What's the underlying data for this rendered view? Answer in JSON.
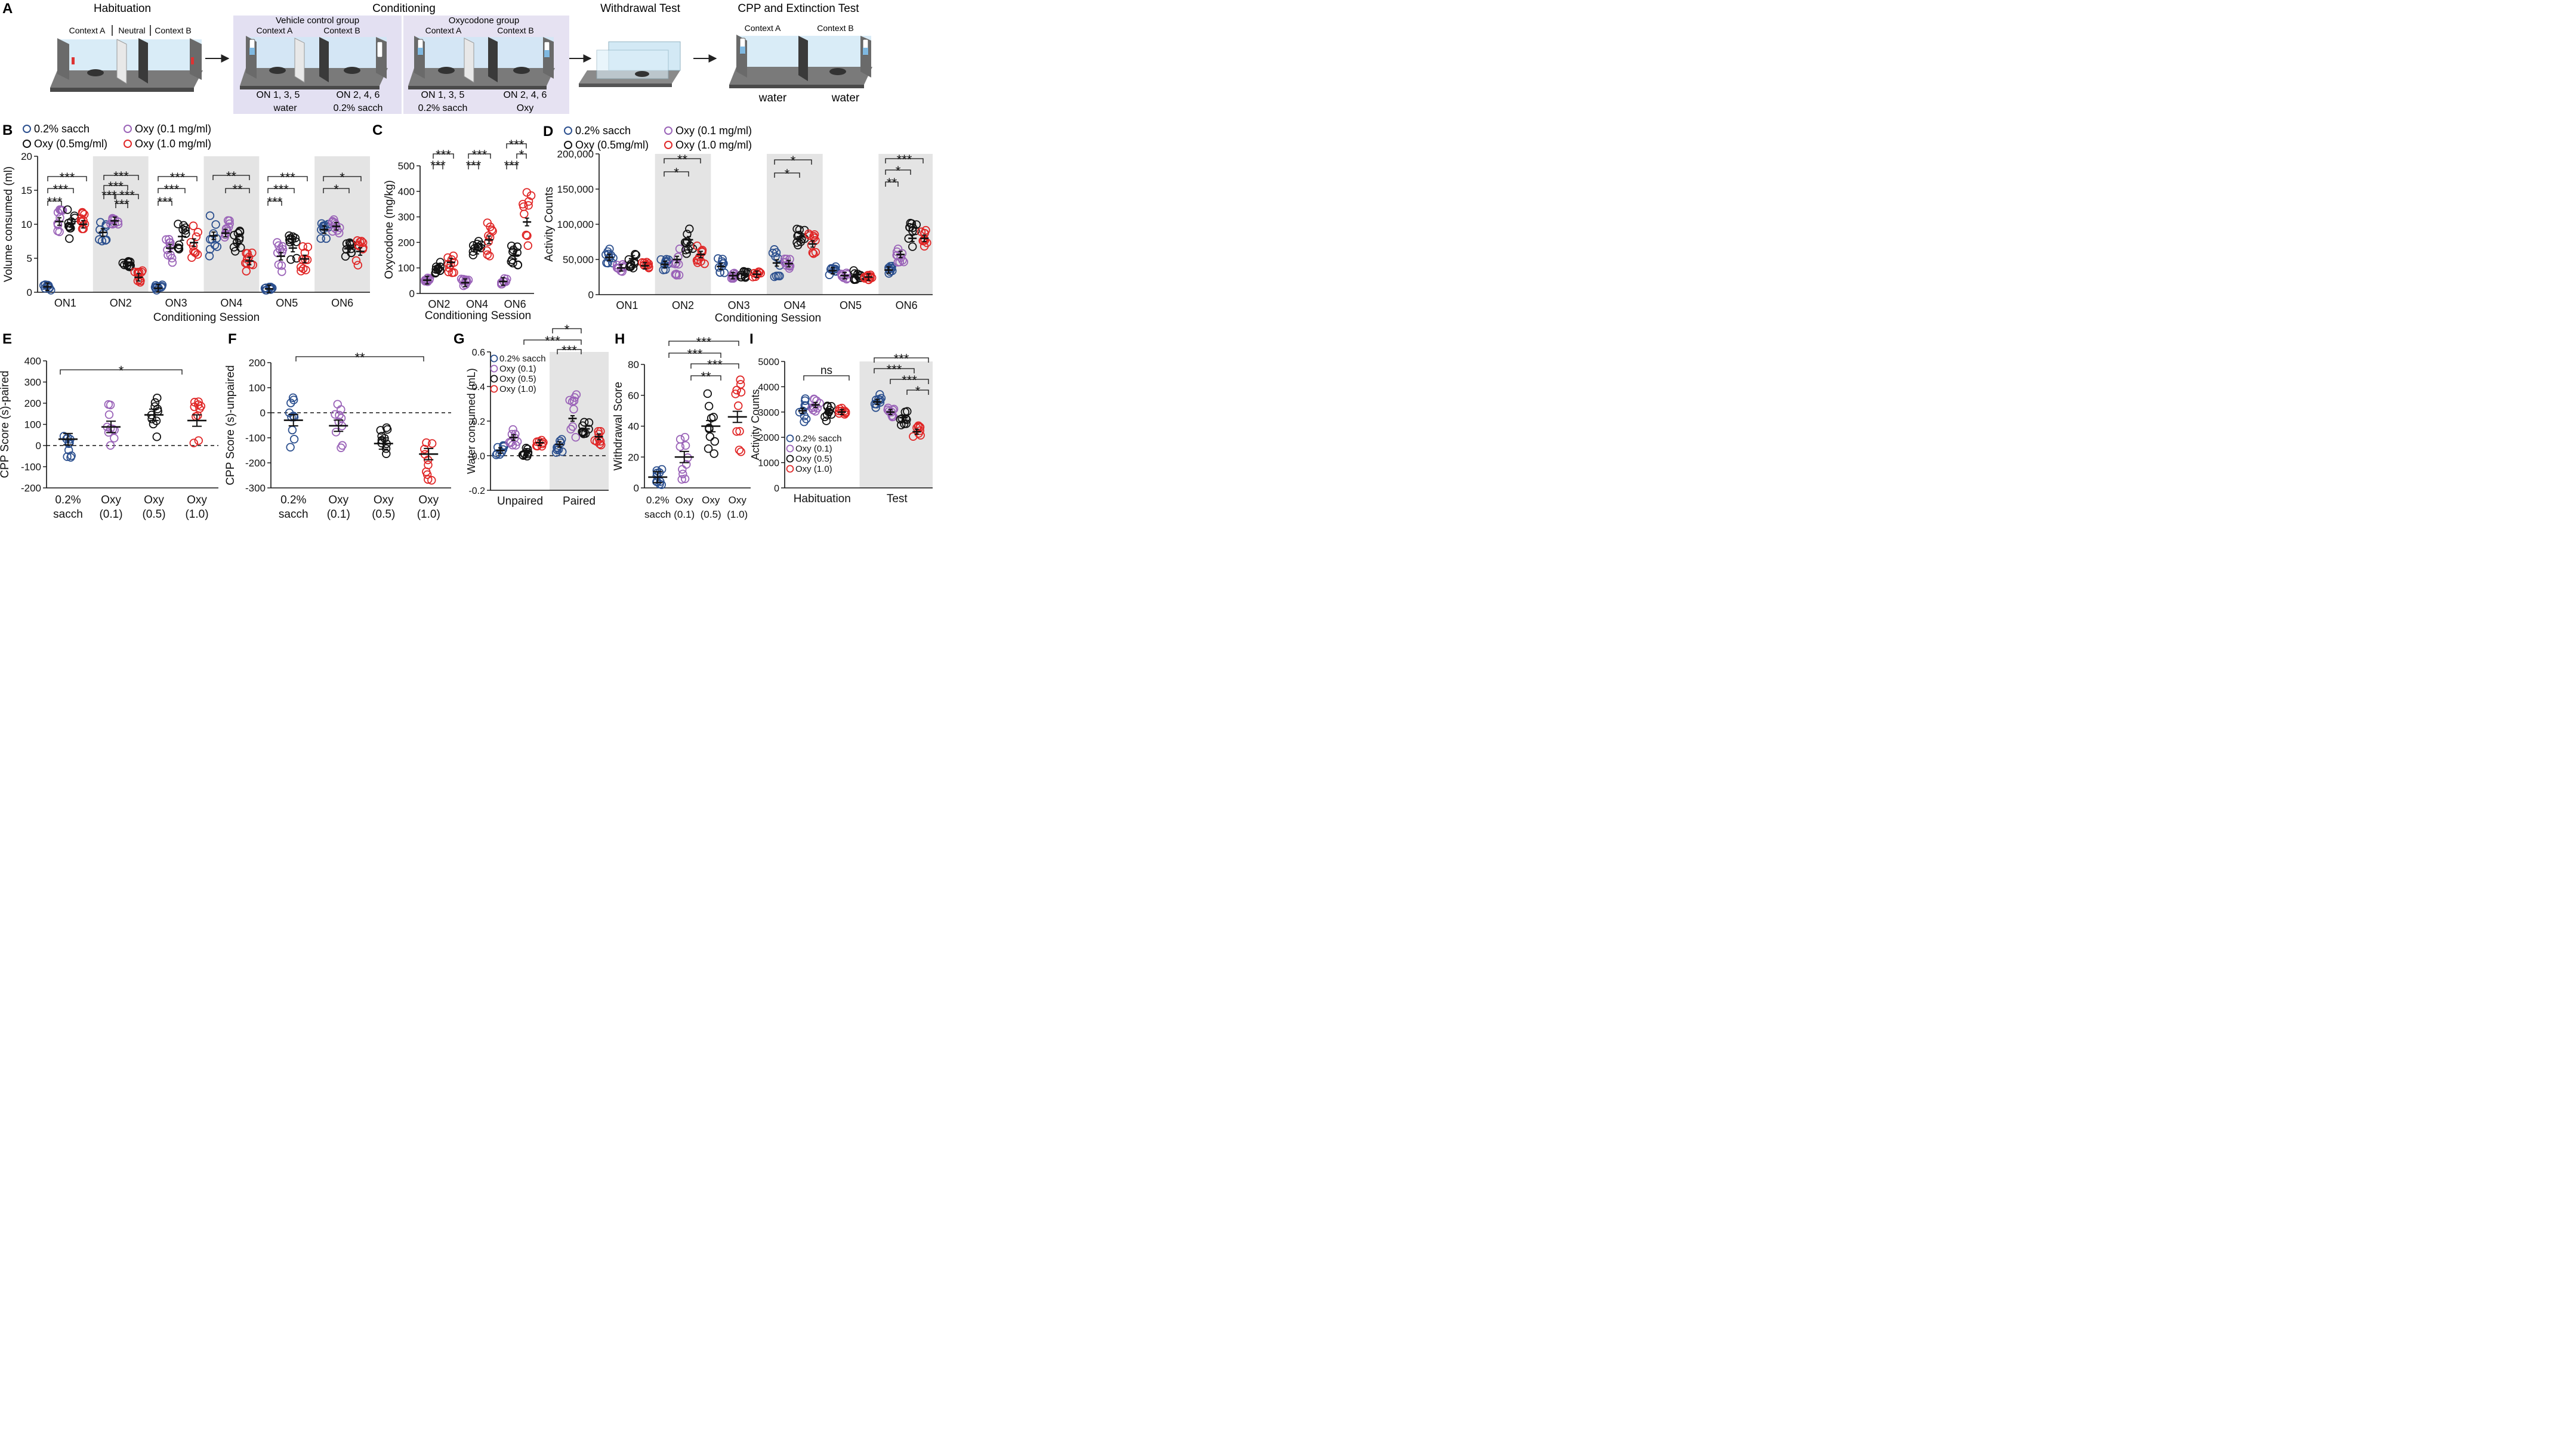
{
  "colors": {
    "sacch": "#2b4f8e",
    "oxy01": "#9a63b8",
    "oxy05": "#111111",
    "oxy10": "#e02626",
    "shade": "#e4e4e4",
    "condShade": "#e3e0f2"
  },
  "panelA": {
    "letter": "A",
    "habituation": {
      "title": "Habituation",
      "labels": [
        "Context A",
        "Neutral",
        "Context B"
      ]
    },
    "conditioning": {
      "title": "Conditioning",
      "vehicle": {
        "title": "Vehicle control group",
        "ctxA": "Context A",
        "ctxB": "Context B",
        "onA": "ON 1, 3, 5",
        "onB": "ON 2, 4, 6",
        "solA": "water",
        "solB": "0.2% sacch"
      },
      "oxy": {
        "title": "Oxycodone group",
        "ctxA": "Context A",
        "ctxB": "Context B",
        "onA": "ON 1, 3, 5",
        "onB": "ON 2, 4, 6",
        "solA": "0.2% sacch",
        "solB": "Oxy"
      }
    },
    "withdrawal": {
      "title": "Withdrawal Test"
    },
    "cpp": {
      "title": "CPP and Extinction Test",
      "ctxA": "Context A",
      "ctxB": "Context B",
      "solA": "water",
      "solB": "water"
    }
  },
  "legendTop": {
    "sacch": "0.2% sacch",
    "oxy01": "Oxy (0.1 mg/ml)",
    "oxy05": "Oxy (0.5mg/ml)",
    "oxy10": "Oxy (1.0 mg/ml)"
  },
  "legendSmall": {
    "sacch": "0.2% sacch",
    "oxy01": "Oxy (0.1)",
    "oxy05": "Oxy (0.5)",
    "oxy10": "Oxy (1.0)"
  },
  "chart_data": [
    {
      "panel": "B",
      "type": "scatter",
      "ylabel": "Volume consumed (ml)",
      "xlabel": "Conditioning Session",
      "ylim": [
        0,
        20
      ],
      "yticks": [
        "0",
        "5",
        "10",
        "15",
        "20"
      ],
      "categories": [
        "ON1",
        "ON2",
        "ON3",
        "ON4",
        "ON5",
        "ON6"
      ],
      "shaded": [
        "ON2",
        "ON4",
        "ON6"
      ],
      "series": [
        {
          "name": "0.2% sacch",
          "means": [
            0.8,
            8.8,
            0.6,
            8.3,
            0.5,
            9.2
          ]
        },
        {
          "name": "Oxy (0.1 mg/ml)",
          "means": [
            10.4,
            10.5,
            6.5,
            8.7,
            5.3,
            9.7
          ]
        },
        {
          "name": "Oxy (0.5mg/ml)",
          "means": [
            10.1,
            4.3,
            8.2,
            7.2,
            6.5,
            6.4
          ]
        },
        {
          "name": "Oxy (1.0 mg/ml)",
          "means": [
            10.0,
            2.2,
            7.3,
            4.6,
            4.9,
            6.0
          ]
        }
      ],
      "annotations": [
        "***",
        "***",
        "***",
        "***",
        "***",
        "***",
        "***",
        "***",
        "***",
        "***",
        "***",
        "***",
        "***",
        "**",
        "**",
        "***",
        "***",
        "***",
        "*",
        "*"
      ]
    },
    {
      "panel": "C",
      "type": "scatter",
      "ylabel": "Oxycodone (mg/kg)",
      "xlabel": "Conditioning Session",
      "ylim": [
        0,
        500
      ],
      "yticks": [
        "0",
        "100",
        "200",
        "300",
        "400",
        "500"
      ],
      "categories": [
        "ON2",
        "ON4",
        "ON6"
      ],
      "series": [
        {
          "name": "Oxy (0.1 mg/ml)",
          "means": [
            52,
            42,
            47
          ]
        },
        {
          "name": "Oxy (0.5mg/ml)",
          "means": [
            100,
            170,
            150
          ]
        },
        {
          "name": "Oxy (1.0 mg/ml)",
          "means": [
            122,
            210,
            280
          ]
        }
      ],
      "annotations": [
        "***",
        "***",
        "***",
        "***",
        "***",
        "***",
        "***",
        "*",
        "***"
      ]
    },
    {
      "panel": "D",
      "type": "scatter",
      "ylabel": "Activity Counts",
      "xlabel": "Conditioning Session",
      "ylim": [
        0,
        200000
      ],
      "yticks": [
        "0",
        "50,000",
        "100,000",
        "150,000",
        "200,000"
      ],
      "categories": [
        "ON1",
        "ON2",
        "ON3",
        "ON4",
        "ON5",
        "ON6"
      ],
      "shaded": [
        "ON2",
        "ON4",
        "ON6"
      ],
      "series": [
        {
          "name": "0.2% sacch",
          "means": [
            53000,
            43000,
            40000,
            45000,
            34000,
            35000
          ]
        },
        {
          "name": "Oxy (0.1 mg/ml)",
          "means": [
            38000,
            50000,
            27000,
            44000,
            27000,
            57000
          ]
        },
        {
          "name": "Oxy (0.5mg/ml)",
          "means": [
            51000,
            78000,
            29000,
            82000,
            28000,
            80000
          ]
        },
        {
          "name": "Oxy (1.0 mg/ml)",
          "means": [
            41000,
            57000,
            29000,
            72000,
            25000,
            80000
          ]
        }
      ],
      "annotations": [
        "**",
        "*",
        "*",
        "*",
        "***",
        "*",
        "**"
      ]
    },
    {
      "panel": "E",
      "type": "scatter",
      "ylabel": "CPP Score (s)-paired",
      "ylim": [
        -200,
        400
      ],
      "yticks": [
        "-200",
        "-100",
        "0",
        "100",
        "200",
        "300",
        "400"
      ],
      "categories": [
        [
          "0.2%",
          "sacch"
        ],
        [
          "Oxy",
          "(0.1)"
        ],
        [
          "Oxy",
          "(0.5)"
        ],
        [
          "Oxy",
          "(1.0)"
        ]
      ],
      "means": [
        30,
        88,
        145,
        118
      ],
      "annotations": [
        "*"
      ]
    },
    {
      "panel": "F",
      "type": "scatter",
      "ylabel": "CPP Score (s)-unpaired",
      "ylim": [
        -300,
        200
      ],
      "yticks": [
        "-300",
        "-200",
        "-100",
        "0",
        "100",
        "200"
      ],
      "categories": [
        [
          "0.2%",
          "sacch"
        ],
        [
          "Oxy",
          "(0.1)"
        ],
        [
          "Oxy",
          "(0.5)"
        ],
        [
          "Oxy",
          "(1.0)"
        ]
      ],
      "means": [
        -30,
        -52,
        -123,
        -165
      ],
      "annotations": [
        "**"
      ]
    },
    {
      "panel": "G",
      "type": "scatter",
      "ylabel": "Water consumed (mL)",
      "ylim": [
        -0.2,
        0.6
      ],
      "yticks": [
        "-0.2",
        "0.0",
        "0.2",
        "0.4",
        "0.6"
      ],
      "categories": [
        "Unpaired",
        "Paired"
      ],
      "shaded": [
        "Paired"
      ],
      "series": [
        {
          "name": "0.2% sacch",
          "means": [
            0.03,
            0.065
          ]
        },
        {
          "name": "Oxy (0.1)",
          "means": [
            0.105,
            0.215
          ]
        },
        {
          "name": "Oxy (0.5)",
          "means": [
            0.025,
            0.155
          ]
        },
        {
          "name": "Oxy (1.0)",
          "means": [
            0.075,
            0.11
          ]
        }
      ],
      "annotations": [
        "*",
        "***",
        "***"
      ]
    },
    {
      "panel": "H",
      "type": "scatter",
      "ylabel": "Withdrawal  Score",
      "ylim": [
        0,
        80
      ],
      "yticks": [
        "0",
        "20",
        "40",
        "60",
        "80"
      ],
      "categories": [
        [
          "0.2%",
          "sacch"
        ],
        [
          "Oxy",
          "(0.1)"
        ],
        [
          "Oxy",
          "(0.5)"
        ],
        [
          "Oxy",
          "(1.0)"
        ]
      ],
      "means": [
        7,
        20,
        40,
        46
      ],
      "annotations": [
        "***",
        "***",
        "***",
        "**"
      ]
    },
    {
      "panel": "I",
      "type": "scatter",
      "ylabel": "Activity Counts",
      "ylim": [
        0,
        5000
      ],
      "yticks": [
        "0",
        "1000",
        "2000",
        "3000",
        "4000",
        "5000"
      ],
      "categories": [
        "Habituation",
        "Test"
      ],
      "shaded": [
        "Test"
      ],
      "series": [
        {
          "name": "0.2% sacch",
          "means": [
            3050,
            3400
          ]
        },
        {
          "name": "Oxy (0.1)",
          "means": [
            3280,
            3000
          ]
        },
        {
          "name": "Oxy (0.5)",
          "means": [
            2980,
            2780
          ]
        },
        {
          "name": "Oxy (1.0)",
          "means": [
            3000,
            2220
          ]
        }
      ],
      "annotations": [
        "ns",
        "***",
        "***",
        "***",
        "*"
      ]
    }
  ]
}
